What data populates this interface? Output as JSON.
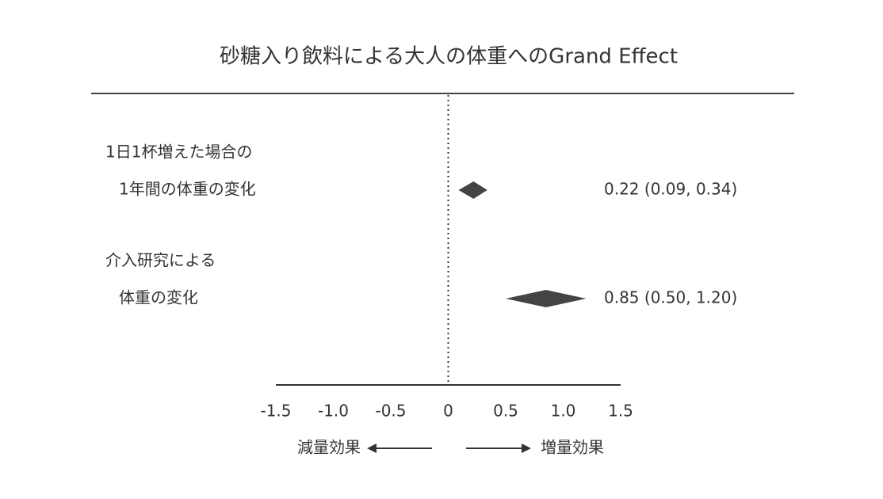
{
  "chart_data": {
    "type": "forest",
    "title": "砂糖入り飲料による大人の体重へのGrand Effect",
    "rows": [
      {
        "labels": [
          "1日1杯増えた場合の",
          "1年間の体重の変化"
        ],
        "value": 0.22,
        "lower": 0.09,
        "upper": 0.34,
        "value_label": "0.22 (0.09, 0.34)"
      },
      {
        "labels": [
          "介入研究による",
          "体重の変化"
        ],
        "value": 0.85,
        "lower": 0.5,
        "upper": 1.2,
        "value_label": "0.85 (0.50, 1.20)"
      }
    ],
    "color": "#444444",
    "xlim": [
      -1.5,
      1.5
    ],
    "xticks": [
      -1.5,
      {
        "value": -1,
        "label": "-1.0"
      },
      -0.5,
      0,
      0.5,
      {
        "value": 1,
        "label": "1.0"
      },
      1.5
    ],
    "left_annotation": "減量効果",
    "right_annotation": "増量効果"
  }
}
